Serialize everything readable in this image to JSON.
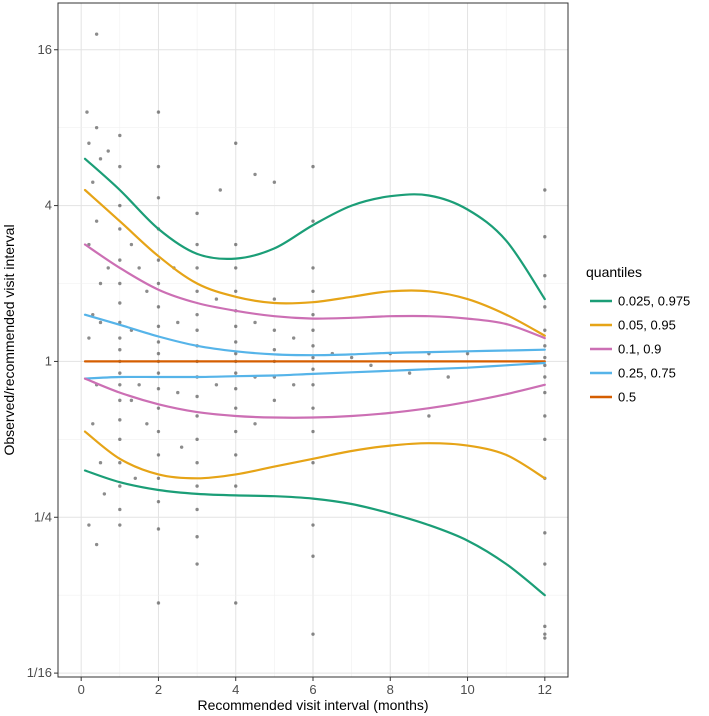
{
  "chart_data": {
    "type": "scatter",
    "title": "",
    "xlabel": "Recommended visit interval (months)",
    "ylabel": "Observed/recommended visit interval",
    "xlim": [
      -0.6,
      12.6
    ],
    "ylim_log2": [
      -4.05,
      4.6
    ],
    "x_ticks": [
      0,
      2,
      4,
      6,
      8,
      10,
      12
    ],
    "x_tick_labels": [
      "0",
      "2",
      "4",
      "6",
      "8",
      "10",
      "12"
    ],
    "y_ticks_log2": [
      -4,
      -2,
      0,
      2,
      4
    ],
    "y_tick_labels": [
      "1/16",
      "1/4",
      "1",
      "4",
      "16"
    ],
    "legend": {
      "title": "quantiles",
      "position": "right",
      "entries": [
        {
          "label": "0.025, 0.975",
          "color": "#1b9e77"
        },
        {
          "label": "0.05, 0.95",
          "color": "#e6a417"
        },
        {
          "label": "0.1, 0.9",
          "color": "#cc6fb4"
        },
        {
          "label": "0.25, 0.75",
          "color": "#56b4e9"
        },
        {
          "label": "0.5",
          "color": "#d55e00"
        }
      ]
    },
    "x_knots": [
      0.1,
      1,
      2,
      3,
      4,
      5,
      6,
      7,
      8,
      9,
      10,
      11,
      12
    ],
    "series": [
      {
        "name": "0.975",
        "color": "#1b9e77",
        "log2_values": [
          2.6,
          2.2,
          1.7,
          1.38,
          1.32,
          1.45,
          1.75,
          2.0,
          2.12,
          2.13,
          1.95,
          1.55,
          0.8
        ]
      },
      {
        "name": "0.95",
        "color": "#e6a417",
        "log2_values": [
          2.2,
          1.8,
          1.35,
          1.0,
          0.83,
          0.75,
          0.76,
          0.83,
          0.9,
          0.9,
          0.8,
          0.6,
          0.33
        ]
      },
      {
        "name": "0.9",
        "color": "#cc6fb4",
        "log2_values": [
          1.5,
          1.2,
          0.92,
          0.75,
          0.65,
          0.58,
          0.55,
          0.56,
          0.58,
          0.58,
          0.55,
          0.48,
          0.3
        ]
      },
      {
        "name": "0.75",
        "color": "#56b4e9",
        "log2_values": [
          0.6,
          0.47,
          0.32,
          0.2,
          0.13,
          0.09,
          0.08,
          0.09,
          0.11,
          0.12,
          0.13,
          0.14,
          0.15
        ]
      },
      {
        "name": "0.5",
        "color": "#d55e00",
        "log2_values": [
          0,
          0,
          0,
          0,
          0,
          0,
          0,
          0,
          0,
          0,
          0,
          0,
          0
        ]
      },
      {
        "name": "0.25",
        "color": "#56b4e9",
        "log2_values": [
          -0.22,
          -0.2,
          -0.2,
          -0.2,
          -0.19,
          -0.18,
          -0.16,
          -0.14,
          -0.12,
          -0.1,
          -0.08,
          -0.05,
          -0.02
        ]
      },
      {
        "name": "0.1",
        "color": "#cc6fb4",
        "log2_values": [
          -0.22,
          -0.4,
          -0.55,
          -0.65,
          -0.7,
          -0.72,
          -0.72,
          -0.7,
          -0.66,
          -0.6,
          -0.52,
          -0.42,
          -0.3
        ]
      },
      {
        "name": "0.05",
        "color": "#e6a417",
        "log2_values": [
          -0.9,
          -1.25,
          -1.45,
          -1.5,
          -1.45,
          -1.35,
          -1.25,
          -1.15,
          -1.08,
          -1.05,
          -1.08,
          -1.2,
          -1.5
        ]
      },
      {
        "name": "0.025",
        "color": "#1b9e77",
        "log2_values": [
          -1.4,
          -1.55,
          -1.65,
          -1.7,
          -1.72,
          -1.73,
          -1.76,
          -1.83,
          -1.95,
          -2.1,
          -2.3,
          -2.6,
          -3.0
        ]
      }
    ],
    "points": [
      {
        "x": 0.4,
        "y": 4.2
      },
      {
        "x": 0.4,
        "y": 3.0
      },
      {
        "x": 0.15,
        "y": 3.2
      },
      {
        "x": 0.2,
        "y": 2.8
      },
      {
        "x": 0.5,
        "y": 2.6
      },
      {
        "x": 0.3,
        "y": 2.3
      },
      {
        "x": 0.2,
        "y": 1.5
      },
      {
        "x": 0.4,
        "y": 1.8
      },
      {
        "x": 0.5,
        "y": 1.0
      },
      {
        "x": 0.3,
        "y": 0.6
      },
      {
        "x": 0.2,
        "y": 0.3
      },
      {
        "x": 0.5,
        "y": 0.5
      },
      {
        "x": 0.4,
        "y": -0.3
      },
      {
        "x": 0.3,
        "y": -0.8
      },
      {
        "x": 0.5,
        "y": -1.3
      },
      {
        "x": 0.6,
        "y": -1.7
      },
      {
        "x": 0.4,
        "y": -2.35
      },
      {
        "x": 0.2,
        "y": -2.1
      },
      {
        "x": 0.7,
        "y": 2.7
      },
      {
        "x": 0.7,
        "y": 1.2
      },
      {
        "x": 1,
        "y": 2.9
      },
      {
        "x": 1,
        "y": 2.5
      },
      {
        "x": 1,
        "y": 2.0
      },
      {
        "x": 1,
        "y": 1.7
      },
      {
        "x": 1,
        "y": 1.3
      },
      {
        "x": 1,
        "y": 1.0
      },
      {
        "x": 1,
        "y": 0.75
      },
      {
        "x": 1,
        "y": 0.5
      },
      {
        "x": 1,
        "y": 0.3
      },
      {
        "x": 1,
        "y": 0.15
      },
      {
        "x": 1,
        "y": 0
      },
      {
        "x": 1,
        "y": -0.15
      },
      {
        "x": 1,
        "y": -0.3
      },
      {
        "x": 1,
        "y": -0.5
      },
      {
        "x": 1,
        "y": -0.75
      },
      {
        "x": 1,
        "y": -1.0
      },
      {
        "x": 1,
        "y": -1.3
      },
      {
        "x": 1,
        "y": -1.6
      },
      {
        "x": 1,
        "y": -1.9
      },
      {
        "x": 1,
        "y": -2.1
      },
      {
        "x": 1.3,
        "y": 1.5
      },
      {
        "x": 1.3,
        "y": 0.4
      },
      {
        "x": 1.3,
        "y": -0.5
      },
      {
        "x": 1.4,
        "y": -1.5
      },
      {
        "x": 1.5,
        "y": 1.2
      },
      {
        "x": 1.5,
        "y": -0.3
      },
      {
        "x": 1.7,
        "y": 0.9
      },
      {
        "x": 1.7,
        "y": -0.8
      },
      {
        "x": 2,
        "y": 2.5
      },
      {
        "x": 2,
        "y": 2.1
      },
      {
        "x": 2,
        "y": 1.7
      },
      {
        "x": 2,
        "y": 1.3
      },
      {
        "x": 2,
        "y": 1.0
      },
      {
        "x": 2,
        "y": 0.7
      },
      {
        "x": 2,
        "y": 0.45
      },
      {
        "x": 2,
        "y": 0.25
      },
      {
        "x": 2,
        "y": 0.1
      },
      {
        "x": 2,
        "y": 0
      },
      {
        "x": 2,
        "y": -0.15
      },
      {
        "x": 2,
        "y": -0.35
      },
      {
        "x": 2,
        "y": -0.6
      },
      {
        "x": 2,
        "y": -0.9
      },
      {
        "x": 2,
        "y": -1.2
      },
      {
        "x": 2,
        "y": -1.5
      },
      {
        "x": 2,
        "y": -1.8
      },
      {
        "x": 2,
        "y": -2.15
      },
      {
        "x": 2,
        "y": -3.1
      },
      {
        "x": 2,
        "y": 3.2
      },
      {
        "x": 2.4,
        "y": 1.2
      },
      {
        "x": 2.5,
        "y": 0.5
      },
      {
        "x": 2.5,
        "y": -0.4
      },
      {
        "x": 2.6,
        "y": -1.1
      },
      {
        "x": 3,
        "y": 1.9
      },
      {
        "x": 3,
        "y": 1.5
      },
      {
        "x": 3,
        "y": 1.2
      },
      {
        "x": 3,
        "y": 0.9
      },
      {
        "x": 3,
        "y": 0.6
      },
      {
        "x": 3,
        "y": 0.4
      },
      {
        "x": 3,
        "y": 0.2
      },
      {
        "x": 3,
        "y": 0
      },
      {
        "x": 3,
        "y": -0.2
      },
      {
        "x": 3,
        "y": -0.45
      },
      {
        "x": 3,
        "y": -0.7
      },
      {
        "x": 3,
        "y": -1.0
      },
      {
        "x": 3,
        "y": -1.3
      },
      {
        "x": 3,
        "y": -1.6
      },
      {
        "x": 3,
        "y": -1.9
      },
      {
        "x": 3,
        "y": -2.25
      },
      {
        "x": 3,
        "y": -2.6
      },
      {
        "x": 3.5,
        "y": 0.8
      },
      {
        "x": 3.5,
        "y": -0.3
      },
      {
        "x": 3.6,
        "y": 2.2
      },
      {
        "x": 4,
        "y": 2.8
      },
      {
        "x": 4,
        "y": 1.5
      },
      {
        "x": 4,
        "y": 1.2
      },
      {
        "x": 4,
        "y": 0.9
      },
      {
        "x": 4,
        "y": 0.65
      },
      {
        "x": 4,
        "y": 0.45
      },
      {
        "x": 4,
        "y": 0.25
      },
      {
        "x": 4,
        "y": 0.1
      },
      {
        "x": 4,
        "y": 0
      },
      {
        "x": 4,
        "y": -0.15
      },
      {
        "x": 4,
        "y": -0.35
      },
      {
        "x": 4,
        "y": -0.6
      },
      {
        "x": 4,
        "y": -0.9
      },
      {
        "x": 4,
        "y": -1.2
      },
      {
        "x": 4,
        "y": -1.6
      },
      {
        "x": 4,
        "y": -3.1
      },
      {
        "x": 4.5,
        "y": 2.4
      },
      {
        "x": 4.5,
        "y": 0.5
      },
      {
        "x": 4.5,
        "y": -0.2
      },
      {
        "x": 4.5,
        "y": -0.8
      },
      {
        "x": 5,
        "y": 2.3
      },
      {
        "x": 5,
        "y": 0.8
      },
      {
        "x": 5,
        "y": 0.4
      },
      {
        "x": 5,
        "y": 0.15
      },
      {
        "x": 5,
        "y": 0
      },
      {
        "x": 5,
        "y": -0.2
      },
      {
        "x": 5,
        "y": -0.5
      },
      {
        "x": 5.5,
        "y": 0.3
      },
      {
        "x": 5.5,
        "y": -0.3
      },
      {
        "x": 6,
        "y": 2.5
      },
      {
        "x": 6,
        "y": 1.8
      },
      {
        "x": 6,
        "y": 1.2
      },
      {
        "x": 6,
        "y": 0.9
      },
      {
        "x": 6,
        "y": 0.6
      },
      {
        "x": 6,
        "y": 0.4
      },
      {
        "x": 6,
        "y": 0.2
      },
      {
        "x": 6,
        "y": 0.05
      },
      {
        "x": 6,
        "y": -0.1
      },
      {
        "x": 6,
        "y": -0.3
      },
      {
        "x": 6,
        "y": -0.6
      },
      {
        "x": 6,
        "y": -0.9
      },
      {
        "x": 6,
        "y": -1.3
      },
      {
        "x": 6,
        "y": -2.1
      },
      {
        "x": 6,
        "y": -2.5
      },
      {
        "x": 6,
        "y": -3.5
      },
      {
        "x": 6.5,
        "y": 0.1
      },
      {
        "x": 7,
        "y": 0.05
      },
      {
        "x": 7.5,
        "y": -0.05
      },
      {
        "x": 8,
        "y": 0.1
      },
      {
        "x": 8.5,
        "y": -0.15
      },
      {
        "x": 9,
        "y": 0.1
      },
      {
        "x": 9,
        "y": -0.7
      },
      {
        "x": 9.5,
        "y": -0.2
      },
      {
        "x": 10,
        "y": 0.1
      },
      {
        "x": 12,
        "y": 2.2
      },
      {
        "x": 12,
        "y": 1.6
      },
      {
        "x": 12,
        "y": 1.1
      },
      {
        "x": 12,
        "y": 0.7
      },
      {
        "x": 12,
        "y": 0.4
      },
      {
        "x": 12,
        "y": 0.2
      },
      {
        "x": 12,
        "y": 0.05
      },
      {
        "x": 12,
        "y": -0.05
      },
      {
        "x": 12,
        "y": -0.2
      },
      {
        "x": 12,
        "y": -0.4
      },
      {
        "x": 12,
        "y": -0.7
      },
      {
        "x": 12,
        "y": -1.0
      },
      {
        "x": 12,
        "y": -1.5
      },
      {
        "x": 12,
        "y": -2.2
      },
      {
        "x": 12,
        "y": -2.6
      },
      {
        "x": 12,
        "y": -3.4
      },
      {
        "x": 12,
        "y": -3.5
      },
      {
        "x": 12,
        "y": -3.55
      }
    ]
  }
}
